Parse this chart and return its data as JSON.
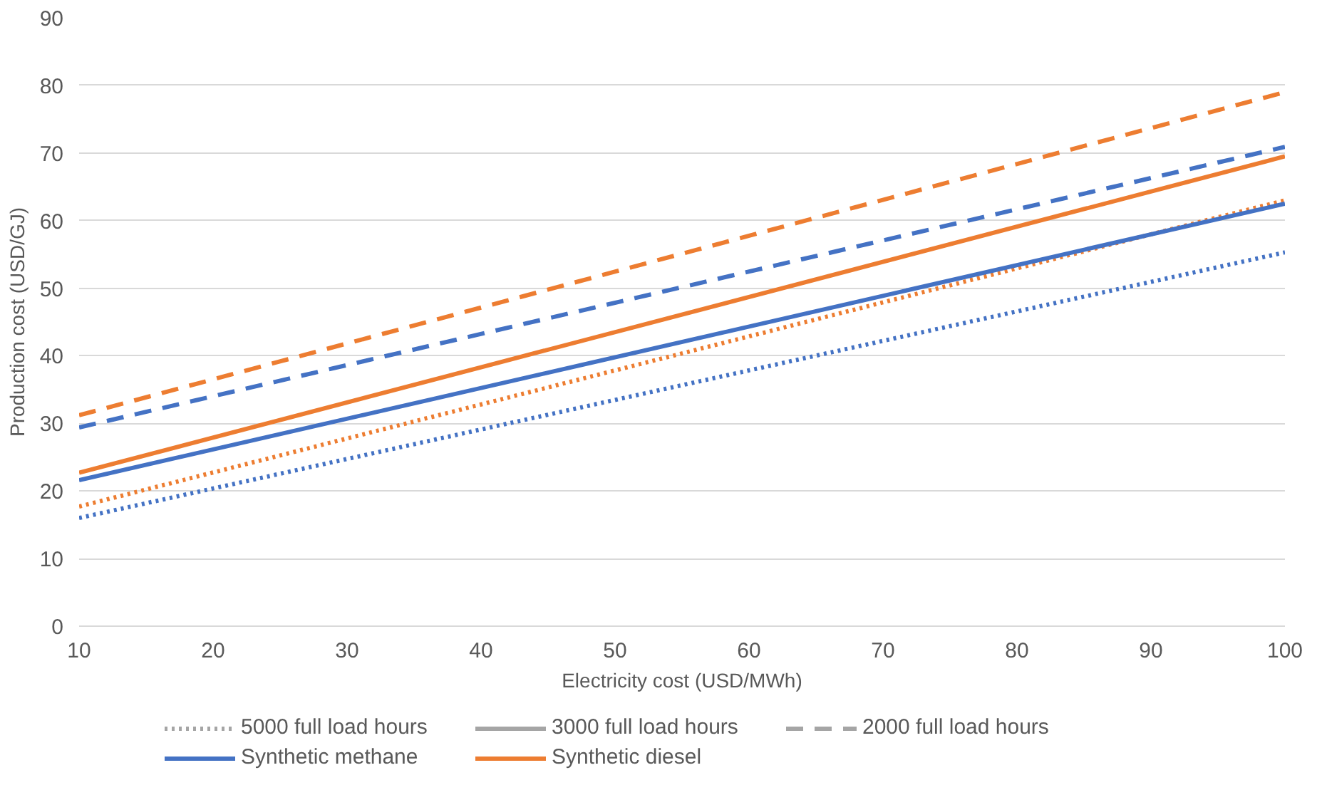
{
  "chart_data": {
    "type": "line",
    "xlabel": "Electricity cost (USD/MWh)",
    "ylabel": "Production cost (USD/GJ)",
    "x": [
      10,
      100
    ],
    "xlim": [
      10,
      100
    ],
    "xticks": [
      10,
      20,
      30,
      40,
      50,
      60,
      70,
      80,
      90,
      100
    ],
    "ylim": [
      0,
      90
    ],
    "yticks": [
      0,
      10,
      20,
      30,
      40,
      50,
      60,
      70,
      80,
      90
    ],
    "grid": "y",
    "legend": "bottom",
    "series": [
      {
        "name": "5000 full load hours",
        "color": "#a5a5a5",
        "line_style": "dotted",
        "values": [
          null,
          null
        ]
      },
      {
        "name": "3000 full load hours",
        "color": "#a5a5a5",
        "line_style": "solid",
        "values": [
          null,
          null
        ]
      },
      {
        "name": "2000 full load hours",
        "color": "#a5a5a5",
        "line_style": "dashed",
        "values": [
          null,
          null
        ]
      },
      {
        "name": "Synthetic methane",
        "color": "#4472c4",
        "line_style": "solid",
        "values": [
          null,
          null
        ]
      },
      {
        "name": "Synthetic diesel",
        "color": "#ed7d31",
        "line_style": "solid",
        "values": [
          null,
          null
        ]
      },
      {
        "color": "#4472c4",
        "line_style": "dotted",
        "values": [
          16,
          55.3
        ]
      },
      {
        "color": "#ed7d31",
        "line_style": "dotted",
        "values": [
          17.7,
          63
        ]
      },
      {
        "color": "#4472c4",
        "line_style": "solid",
        "values": [
          21.6,
          62.5
        ]
      },
      {
        "color": "#ed7d31",
        "line_style": "solid",
        "values": [
          22.7,
          69.5
        ]
      },
      {
        "color": "#4472c4",
        "line_style": "dashed",
        "values": [
          29.4,
          70.9
        ]
      },
      {
        "color": "#ed7d31",
        "line_style": "dashed",
        "values": [
          31.2,
          79
        ]
      }
    ]
  }
}
